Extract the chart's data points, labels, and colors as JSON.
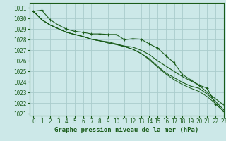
{
  "title": "Graphe pression niveau de la mer (hPa)",
  "bg_color": "#cce8e8",
  "grid_color": "#aacccc",
  "line_color": "#1a5c1a",
  "xlim": [
    -0.5,
    23
  ],
  "ylim": [
    1020.8,
    1031.5
  ],
  "yticks": [
    1021,
    1022,
    1023,
    1024,
    1025,
    1026,
    1027,
    1028,
    1029,
    1030,
    1031
  ],
  "xticks": [
    0,
    1,
    2,
    3,
    4,
    5,
    6,
    7,
    8,
    9,
    10,
    11,
    12,
    13,
    14,
    15,
    16,
    17,
    18,
    19,
    20,
    21,
    22,
    23
  ],
  "series": [
    [
      1030.7,
      1030.8,
      1029.9,
      1029.4,
      1029.0,
      1028.8,
      1028.7,
      1028.55,
      1028.55,
      1028.5,
      1028.5,
      1028.0,
      1028.1,
      1028.05,
      1027.6,
      1027.2,
      1026.5,
      1025.8,
      1024.7,
      1024.2,
      1023.7,
      1023.4,
      1021.9,
      1021.2
    ],
    [
      1030.7,
      1029.9,
      1029.4,
      1029.05,
      1028.7,
      1028.5,
      1028.3,
      1028.05,
      1027.9,
      1027.8,
      1027.6,
      1027.4,
      1027.3,
      1027.0,
      1026.6,
      1026.0,
      1025.5,
      1025.0,
      1024.5,
      1024.1,
      1023.7,
      1023.0,
      1022.4,
      1021.8
    ],
    [
      1030.7,
      1029.9,
      1029.4,
      1029.05,
      1028.7,
      1028.5,
      1028.3,
      1028.05,
      1027.9,
      1027.7,
      1027.55,
      1027.35,
      1027.1,
      1026.7,
      1026.2,
      1025.5,
      1024.85,
      1024.4,
      1023.95,
      1023.6,
      1023.4,
      1022.85,
      1022.15,
      1021.35
    ],
    [
      1030.7,
      1029.9,
      1029.4,
      1029.05,
      1028.7,
      1028.5,
      1028.3,
      1028.05,
      1027.9,
      1027.7,
      1027.55,
      1027.35,
      1027.1,
      1026.7,
      1026.1,
      1025.4,
      1024.75,
      1024.2,
      1023.75,
      1023.4,
      1023.1,
      1022.6,
      1021.95,
      1021.2
    ]
  ],
  "font_color": "#1a5c1a",
  "label_fontsize": 5.5,
  "title_fontsize": 6.5
}
